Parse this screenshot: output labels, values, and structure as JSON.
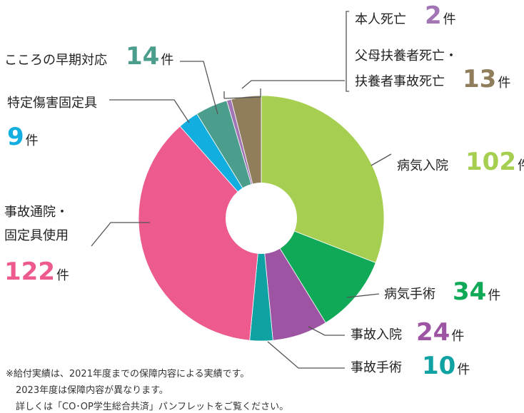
{
  "chart_data": {
    "type": "pie",
    "unit": "件",
    "slices": [
      {
        "name": "病気入院",
        "value": 102,
        "color": "#a6cf52"
      },
      {
        "name": "病気手術",
        "value": 34,
        "color": "#10a957"
      },
      {
        "name": "事故入院",
        "value": 24,
        "color": "#9c54a3"
      },
      {
        "name": "事故手術",
        "value": 10,
        "color": "#10a2a2"
      },
      {
        "name": "事故通院・固定具使用",
        "value": 122,
        "color": "#ec5a8e"
      },
      {
        "name": "特定傷害固定具",
        "value": 9,
        "color": "#13aee0"
      },
      {
        "name": "こころの早期対応",
        "value": 14,
        "color": "#4c9e8c"
      },
      {
        "name": "本人死亡",
        "value": 2,
        "color": "#a275b4"
      },
      {
        "name": "父母扶養者死亡・扶養者事故死亡",
        "value": 13,
        "color": "#8f7d5c"
      }
    ],
    "label_lines": {
      "0": [
        "病気入院"
      ],
      "1": [
        "病気手術"
      ],
      "2": [
        "事故入院"
      ],
      "3": [
        "事故手術"
      ],
      "4": [
        "事故通院・",
        "固定具使用"
      ],
      "5": [
        "特定傷害固定具"
      ],
      "6": [
        "こころの早期対応"
      ],
      "7": [
        "本人死亡"
      ],
      "8": [
        "父母扶養者死亡・",
        "扶養者事故死亡"
      ]
    }
  },
  "notes": [
    "※給付実績は、2021年度までの保障内容による実績です。",
    "2023年度は保障内容が異なります。",
    "詳しくは「CO･OP学生総合共済」パンフレットをご覧ください。"
  ]
}
